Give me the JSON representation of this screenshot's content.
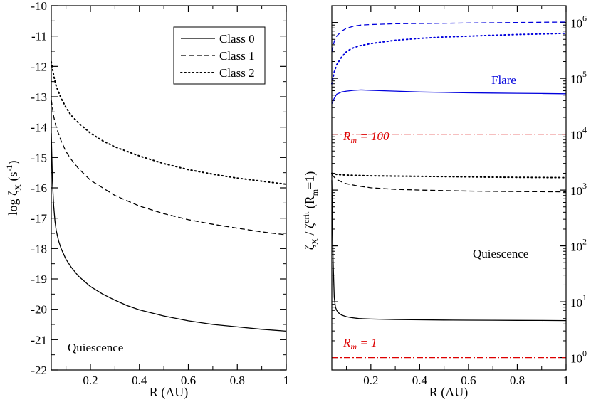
{
  "chart_data": [
    {
      "type": "line",
      "panel": "left",
      "xlabel": "R (AU)",
      "ylabel": {
        "prefix": "log ζ",
        "sub": "X",
        "unit_open": " (s",
        "unit_sup": "-1",
        "unit_close": ")"
      },
      "xlim": [
        0.04,
        1.0
      ],
      "ylim": [
        -22,
        -10
      ],
      "yscale": "linear",
      "xticks": [
        0.2,
        0.4,
        0.6,
        0.8,
        1.0
      ],
      "xtick_labels": [
        "0.2",
        "0.4",
        "0.6",
        "0.8",
        "1"
      ],
      "yticks": [
        -22,
        -21,
        -20,
        -19,
        -18,
        -17,
        -16,
        -15,
        -14,
        -13,
        -12,
        -11,
        -10
      ],
      "ytick_labels": [
        "-22",
        "-21",
        "-20",
        "-19",
        "-18",
        "-17",
        "-16",
        "-15",
        "-14",
        "-13",
        "-12",
        "-11",
        "-10"
      ],
      "legend": {
        "placement": "top-right",
        "entries": [
          {
            "label": "Class 0",
            "style": "solid"
          },
          {
            "label": "Class 1",
            "style": "dashed"
          },
          {
            "label": "Class 2",
            "style": "dotted"
          }
        ]
      },
      "annotation": "Quiescence",
      "series": [
        {
          "name": "Class 0",
          "style": "solid",
          "color": "#000000",
          "x": [
            0.04,
            0.045,
            0.05,
            0.055,
            0.06,
            0.07,
            0.08,
            0.1,
            0.12,
            0.15,
            0.2,
            0.25,
            0.3,
            0.35,
            0.4,
            0.5,
            0.6,
            0.7,
            0.8,
            0.9,
            1.0
          ],
          "y": [
            -14.2,
            -15.8,
            -16.6,
            -17.1,
            -17.4,
            -17.75,
            -18.0,
            -18.35,
            -18.6,
            -18.9,
            -19.25,
            -19.5,
            -19.7,
            -19.88,
            -20.02,
            -20.22,
            -20.38,
            -20.5,
            -20.58,
            -20.66,
            -20.72
          ]
        },
        {
          "name": "Class 1",
          "style": "dashed",
          "color": "#000000",
          "x": [
            0.04,
            0.05,
            0.06,
            0.08,
            0.1,
            0.12,
            0.15,
            0.2,
            0.25,
            0.3,
            0.4,
            0.5,
            0.6,
            0.7,
            0.8,
            0.9,
            1.0
          ],
          "y": [
            -13.1,
            -13.65,
            -14.0,
            -14.45,
            -14.8,
            -15.05,
            -15.35,
            -15.75,
            -16.0,
            -16.25,
            -16.6,
            -16.85,
            -17.05,
            -17.2,
            -17.33,
            -17.45,
            -17.55
          ]
        },
        {
          "name": "Class 2",
          "style": "dotted",
          "color": "#000000",
          "x": [
            0.04,
            0.05,
            0.06,
            0.08,
            0.1,
            0.12,
            0.15,
            0.2,
            0.25,
            0.3,
            0.4,
            0.5,
            0.6,
            0.7,
            0.8,
            0.9,
            1.0
          ],
          "y": [
            -11.85,
            -12.3,
            -12.65,
            -13.05,
            -13.35,
            -13.6,
            -13.85,
            -14.2,
            -14.45,
            -14.65,
            -14.95,
            -15.2,
            -15.4,
            -15.55,
            -15.68,
            -15.78,
            -15.88
          ]
        }
      ]
    },
    {
      "type": "line",
      "panel": "right",
      "xlabel": "R (AU)",
      "ylabel": {
        "prefix": "ζ",
        "sub": "X",
        "mid": " / ζ",
        "sup": "crit",
        "tail_open": " (R",
        "tail_sub": "m",
        "tail_close": "=1)"
      },
      "xlim": [
        0.04,
        1.0
      ],
      "ylim": [
        0.6,
        2000000
      ],
      "yscale": "log",
      "yaxis_side": "right",
      "xticks": [
        0.2,
        0.4,
        0.6,
        0.8,
        1.0
      ],
      "xtick_labels": [
        "0.2",
        "0.4",
        "0.6",
        "0.8",
        "1"
      ],
      "yticks": [
        1,
        10,
        100,
        1000,
        10000,
        100000,
        1000000
      ],
      "ytick_labels": [
        {
          "base": "10",
          "exp": "0"
        },
        {
          "base": "10",
          "exp": "1"
        },
        {
          "base": "10",
          "exp": "2"
        },
        {
          "base": "10",
          "exp": "3"
        },
        {
          "base": "10",
          "exp": "4"
        },
        {
          "base": "10",
          "exp": "5"
        },
        {
          "base": "10",
          "exp": "6"
        }
      ],
      "annotations": {
        "flare": "Flare",
        "quiescence": "Quiescence",
        "rm100": {
          "prefix": "R",
          "sub": "m",
          "suffix": " = 100"
        },
        "rm1": {
          "prefix": "R",
          "sub": "m",
          "suffix": " = 1"
        }
      },
      "colors": {
        "flare": "#0000dd",
        "threshold": "#dd0000",
        "quiescence": "#000000"
      },
      "series": [
        {
          "name": "Rm = 100 threshold",
          "style": "dashdot",
          "color": "#dd0000",
          "x": [
            0.04,
            1.0
          ],
          "y": [
            10000,
            10000
          ]
        },
        {
          "name": "Rm = 1 threshold",
          "style": "dashdot",
          "color": "#dd0000",
          "x": [
            0.04,
            1.0
          ],
          "y": [
            1,
            1
          ]
        },
        {
          "name": "Flare Class 0",
          "style": "solid",
          "color": "#0000dd",
          "x": [
            0.04,
            0.05,
            0.06,
            0.08,
            0.1,
            0.13,
            0.16,
            0.2,
            0.3,
            0.4,
            0.5,
            0.6,
            0.7,
            0.8,
            0.9,
            1.0
          ],
          "y": [
            35000,
            44000,
            52000,
            57000,
            59000,
            61000,
            62000,
            61000,
            59000,
            57000,
            56000,
            55000,
            54500,
            54000,
            53500,
            53000
          ]
        },
        {
          "name": "Flare Class 1",
          "style": "dashed",
          "color": "#0000dd",
          "x": [
            0.04,
            0.05,
            0.06,
            0.08,
            0.1,
            0.13,
            0.16,
            0.2,
            0.3,
            0.4,
            0.5,
            0.6,
            0.7,
            0.8,
            0.9,
            1.0
          ],
          "y": [
            300000,
            460000,
            570000,
            700000,
            790000,
            860000,
            900000,
            920000,
            950000,
            960000,
            970000,
            980000,
            990000,
            1000000,
            1010000,
            1020000
          ]
        },
        {
          "name": "Flare Class 2",
          "style": "dotted",
          "color": "#0000dd",
          "x": [
            0.04,
            0.05,
            0.06,
            0.08,
            0.1,
            0.12,
            0.15,
            0.2,
            0.3,
            0.4,
            0.5,
            0.6,
            0.7,
            0.8,
            0.9,
            1.0
          ],
          "y": [
            80000,
            130000,
            175000,
            240000,
            300000,
            340000,
            380000,
            420000,
            480000,
            520000,
            550000,
            570000,
            590000,
            610000,
            625000,
            640000
          ]
        },
        {
          "name": "Quiescence Class 0",
          "style": "solid",
          "color": "#000000",
          "x": [
            0.04,
            0.045,
            0.05,
            0.055,
            0.06,
            0.07,
            0.08,
            0.1,
            0.12,
            0.15,
            0.2,
            0.3,
            0.4,
            0.5,
            0.6,
            0.7,
            0.8,
            0.9,
            1.0
          ],
          "y": [
            1500,
            60,
            12,
            8,
            7,
            6.2,
            5.8,
            5.4,
            5.2,
            5.0,
            4.9,
            4.8,
            4.75,
            4.7,
            4.68,
            4.66,
            4.64,
            4.62,
            4.6
          ]
        },
        {
          "name": "Quiescence Class 1",
          "style": "dashed",
          "color": "#000000",
          "x": [
            0.04,
            0.05,
            0.06,
            0.08,
            0.1,
            0.15,
            0.2,
            0.3,
            0.4,
            0.5,
            0.6,
            0.7,
            0.8,
            0.9,
            1.0
          ],
          "y": [
            1900,
            1700,
            1550,
            1400,
            1300,
            1180,
            1100,
            1030,
            1000,
            980,
            960,
            950,
            940,
            935,
            930
          ]
        },
        {
          "name": "Quiescence Class 2",
          "style": "dotted",
          "color": "#000000",
          "x": [
            0.04,
            0.06,
            0.1,
            0.2,
            0.3,
            0.4,
            0.5,
            0.6,
            0.7,
            0.8,
            0.9,
            1.0
          ],
          "y": [
            2000,
            1900,
            1850,
            1800,
            1780,
            1760,
            1740,
            1720,
            1700,
            1690,
            1680,
            1670
          ]
        }
      ]
    }
  ]
}
